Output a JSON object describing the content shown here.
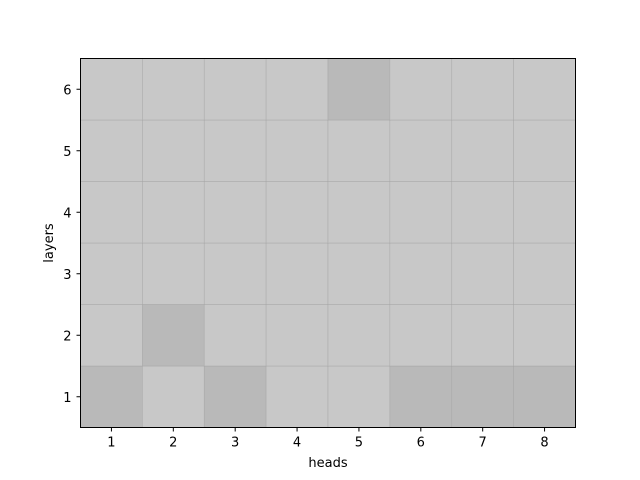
{
  "chart_data": {
    "type": "heatmap",
    "title": "",
    "xlabel": "heads",
    "ylabel": "layers",
    "x_categories": [
      "1",
      "2",
      "3",
      "4",
      "5",
      "6",
      "7",
      "8"
    ],
    "y_categories": [
      "1",
      "2",
      "3",
      "4",
      "5",
      "6"
    ],
    "grid": false,
    "colors": {
      "base": "#c8c8c8",
      "dark": "#b9b9b9",
      "edge": "#a0a0a0"
    },
    "cells": [
      [
        1,
        1,
        "dark"
      ],
      [
        2,
        1,
        "base"
      ],
      [
        3,
        1,
        "dark"
      ],
      [
        4,
        1,
        "base"
      ],
      [
        5,
        1,
        "base"
      ],
      [
        6,
        1,
        "dark"
      ],
      [
        7,
        1,
        "dark"
      ],
      [
        8,
        1,
        "dark"
      ],
      [
        1,
        2,
        "base"
      ],
      [
        2,
        2,
        "dark"
      ],
      [
        3,
        2,
        "base"
      ],
      [
        4,
        2,
        "base"
      ],
      [
        5,
        2,
        "base"
      ],
      [
        6,
        2,
        "base"
      ],
      [
        7,
        2,
        "base"
      ],
      [
        8,
        2,
        "base"
      ],
      [
        1,
        3,
        "base"
      ],
      [
        2,
        3,
        "base"
      ],
      [
        3,
        3,
        "base"
      ],
      [
        4,
        3,
        "base"
      ],
      [
        5,
        3,
        "base"
      ],
      [
        6,
        3,
        "base"
      ],
      [
        7,
        3,
        "base"
      ],
      [
        8,
        3,
        "base"
      ],
      [
        1,
        4,
        "base"
      ],
      [
        2,
        4,
        "base"
      ],
      [
        3,
        4,
        "base"
      ],
      [
        4,
        4,
        "base"
      ],
      [
        5,
        4,
        "base"
      ],
      [
        6,
        4,
        "base"
      ],
      [
        7,
        4,
        "base"
      ],
      [
        8,
        4,
        "base"
      ],
      [
        1,
        5,
        "base"
      ],
      [
        2,
        5,
        "base"
      ],
      [
        3,
        5,
        "base"
      ],
      [
        4,
        5,
        "base"
      ],
      [
        5,
        5,
        "base"
      ],
      [
        6,
        5,
        "base"
      ],
      [
        7,
        5,
        "base"
      ],
      [
        8,
        5,
        "base"
      ],
      [
        1,
        6,
        "base"
      ],
      [
        2,
        6,
        "base"
      ],
      [
        3,
        6,
        "base"
      ],
      [
        4,
        6,
        "base"
      ],
      [
        5,
        6,
        "dark"
      ],
      [
        6,
        6,
        "base"
      ],
      [
        7,
        6,
        "base"
      ],
      [
        8,
        6,
        "base"
      ]
    ]
  }
}
